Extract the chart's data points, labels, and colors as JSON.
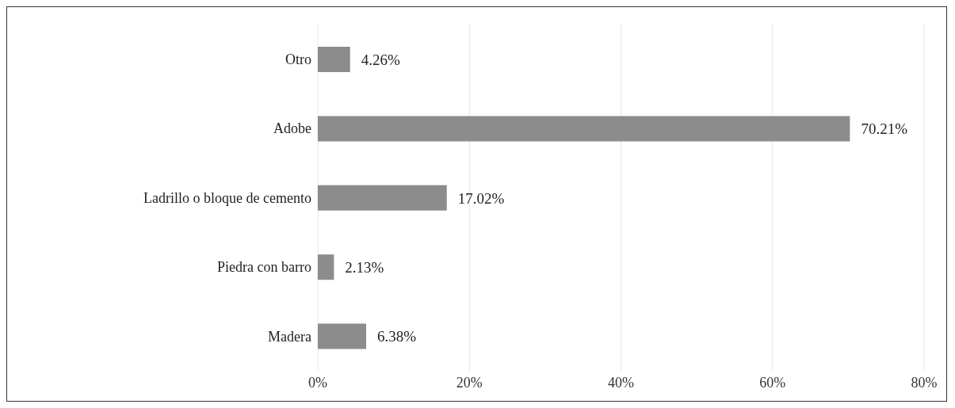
{
  "chart_data": {
    "type": "bar",
    "orientation": "horizontal",
    "categories": [
      "Otro",
      "Adobe",
      "Ladrillo o bloque de cemento",
      "Piedra con barro",
      "Madera"
    ],
    "values": [
      4.26,
      70.21,
      17.02,
      2.13,
      6.38
    ],
    "value_labels": [
      "4.26%",
      "70.21%",
      "17.02%",
      "2.13%",
      "6.38%"
    ],
    "color": "#8c8c8c",
    "xlim": [
      0,
      80
    ],
    "xticks": [
      {
        "value": 0,
        "label": "0%"
      },
      {
        "value": 20,
        "label": "20%"
      },
      {
        "value": 40,
        "label": "40%"
      },
      {
        "value": 60,
        "label": "60%"
      },
      {
        "value": 80,
        "label": "80%"
      }
    ],
    "grid": "x"
  }
}
